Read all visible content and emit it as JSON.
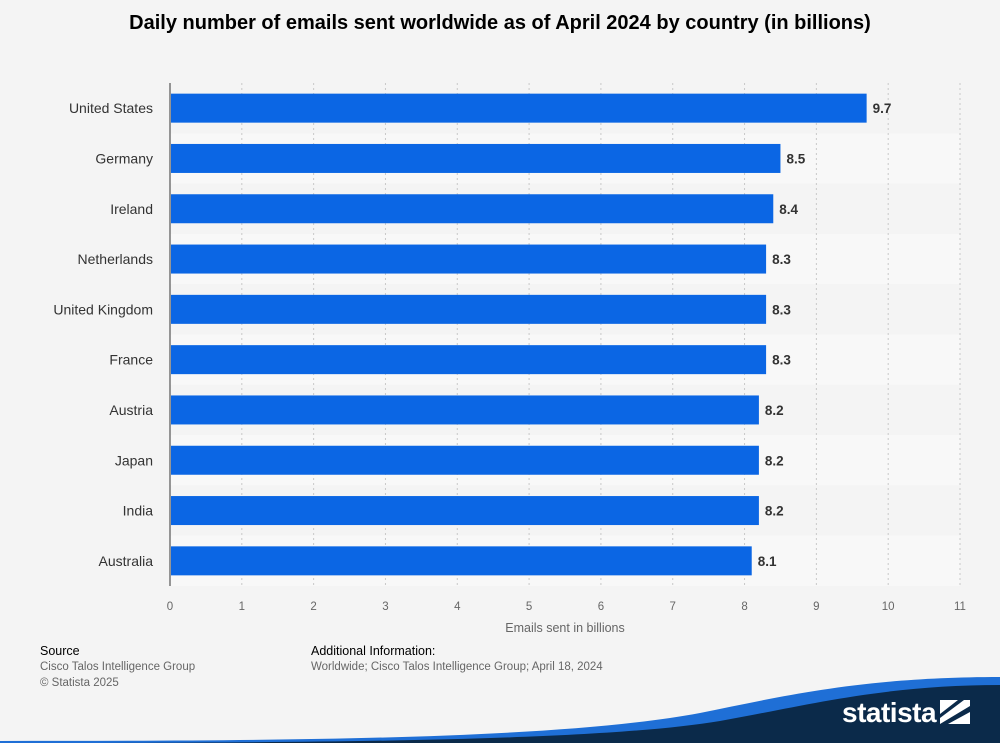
{
  "chart_data": {
    "type": "bar",
    "orientation": "horizontal",
    "title": "Daily number of emails sent worldwide as of April 2024 by country (in billions)",
    "xlabel": "Emails sent in billions",
    "ylabel": "",
    "categories": [
      "United States",
      "Germany",
      "Ireland",
      "Netherlands",
      "United Kingdom",
      "France",
      "Austria",
      "Japan",
      "India",
      "Australia"
    ],
    "values": [
      9.7,
      8.5,
      8.4,
      8.3,
      8.3,
      8.3,
      8.2,
      8.2,
      8.2,
      8.1
    ],
    "value_labels": [
      "9.7",
      "8.5",
      "8.4",
      "8.3",
      "8.3",
      "8.3",
      "8.2",
      "8.2",
      "8.2",
      "8.1"
    ],
    "xlim": [
      0,
      11
    ],
    "xticks": [
      0,
      1,
      2,
      3,
      4,
      5,
      6,
      7,
      8,
      9,
      10,
      11
    ],
    "grid": true,
    "bar_color": "#0b66e4"
  },
  "footer": {
    "source_label": "Source",
    "source_lines": [
      "Cisco Talos Intelligence Group",
      "© Statista 2025"
    ],
    "additional_label": "Additional Information:",
    "additional_text": "Worldwide; Cisco Talos Intelligence Group; April 18, 2024"
  },
  "brand": {
    "logo_text": "statista",
    "wave_color": "#0b2a4a",
    "accent_color": "#1f6fd6"
  }
}
